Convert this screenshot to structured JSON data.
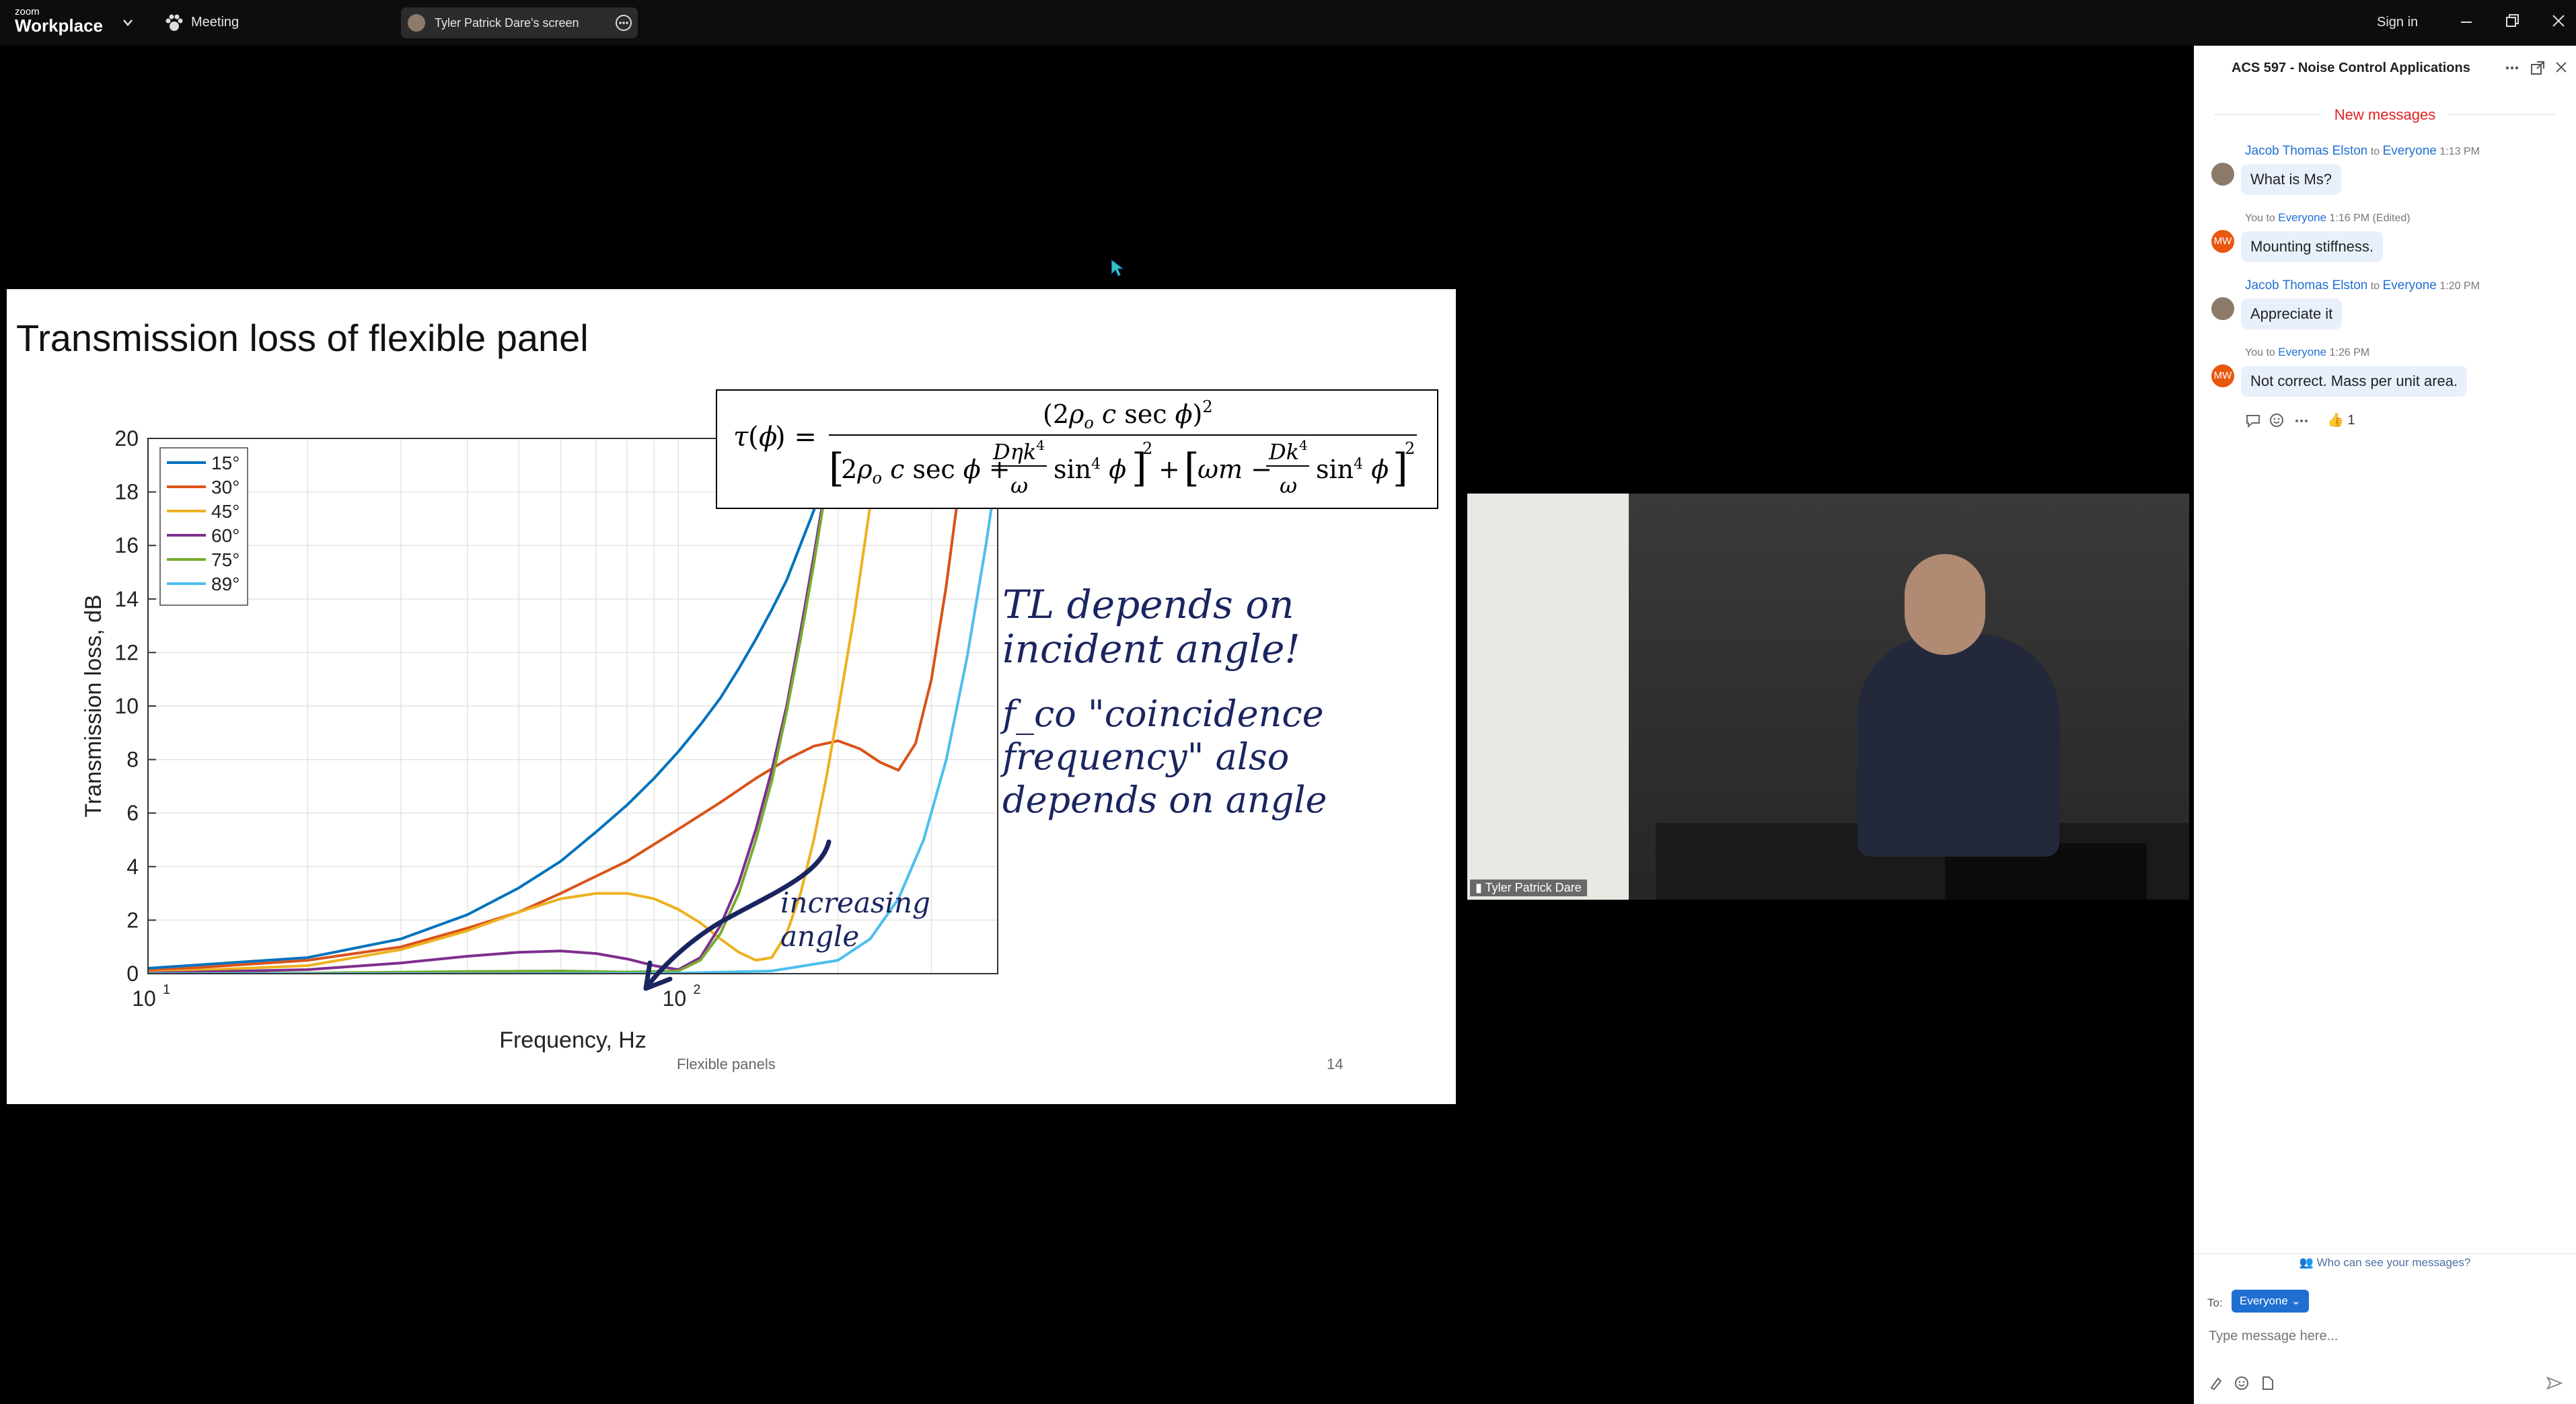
{
  "topbar": {
    "brand_small": "zoom",
    "brand_big": "Workplace",
    "meeting_label": "Meeting",
    "share_label": "Tyler Patrick Dare's screen",
    "sign_in": "Sign in"
  },
  "slide": {
    "title": "Transmission loss of flexible panel",
    "footer_title": "Flexible panels",
    "page_number": "14",
    "annotation_1": "TL depends on incident angle!",
    "annotation_2": "f_co \"coincidence frequency\" also depends on angle",
    "annotation_3": "increasing angle"
  },
  "chart_data": {
    "type": "line",
    "xlabel": "Frequency, Hz",
    "ylabel": "Transmission loss, dB",
    "xscale": "log",
    "xlim": [
      10,
      400
    ],
    "ylim": [
      0,
      20
    ],
    "yticks": [
      0,
      2,
      4,
      6,
      8,
      10,
      12,
      14,
      16,
      18,
      20
    ],
    "ytick_labels": [
      "0",
      "2",
      "4",
      "6",
      "8",
      "10",
      "12",
      "14",
      "16",
      "18",
      "20"
    ],
    "xtick_labels": [
      "10",
      "10"
    ],
    "xtick_exponents": [
      "1",
      "2"
    ],
    "grid": true,
    "legend_position": "top-left",
    "series": [
      {
        "name": "15°",
        "color": "#0072BD",
        "x": [
          10,
          20,
          30,
          40,
          50,
          60,
          70,
          80,
          90,
          100,
          110,
          120,
          130,
          140,
          150,
          160,
          180,
          200
        ],
        "y": [
          0.2,
          0.6,
          1.3,
          2.2,
          3.2,
          4.2,
          5.3,
          6.3,
          7.3,
          8.3,
          9.3,
          10.3,
          11.4,
          12.5,
          13.6,
          14.7,
          17.3,
          20.5
        ]
      },
      {
        "name": "30°",
        "color": "#D95319",
        "x": [
          10,
          20,
          30,
          40,
          50,
          60,
          80,
          100,
          120,
          140,
          160,
          180,
          200,
          220,
          240,
          260,
          280,
          300,
          320,
          340,
          360
        ],
        "y": [
          0.1,
          0.5,
          1.0,
          1.7,
          2.3,
          3.0,
          4.2,
          5.4,
          6.4,
          7.3,
          8.0,
          8.5,
          8.7,
          8.4,
          7.9,
          7.6,
          8.6,
          11.0,
          14.5,
          18.5,
          22.0
        ]
      },
      {
        "name": "45°",
        "color": "#EDB120",
        "x": [
          10,
          20,
          30,
          40,
          50,
          60,
          70,
          80,
          90,
          100,
          110,
          120,
          130,
          140,
          150,
          160,
          170,
          180,
          190,
          200,
          215,
          230,
          245
        ],
        "y": [
          0.05,
          0.3,
          0.9,
          1.6,
          2.3,
          2.8,
          3.0,
          3.0,
          2.8,
          2.4,
          1.9,
          1.3,
          0.8,
          0.5,
          0.6,
          1.5,
          3.0,
          5.0,
          7.3,
          9.8,
          13.5,
          17.5,
          21.0
        ]
      },
      {
        "name": "60°",
        "color": "#7E2F8E",
        "x": [
          10,
          20,
          30,
          40,
          50,
          60,
          70,
          80,
          90,
          100,
          110,
          120,
          130,
          140,
          150,
          160,
          170,
          180,
          190,
          200
        ],
        "y": [
          0.02,
          0.15,
          0.4,
          0.65,
          0.8,
          0.85,
          0.75,
          0.55,
          0.3,
          0.15,
          0.6,
          1.8,
          3.4,
          5.4,
          7.6,
          10.0,
          12.8,
          15.6,
          18.4,
          21.0
        ]
      },
      {
        "name": "75°",
        "color": "#77AC30",
        "x": [
          10,
          20,
          40,
          60,
          80,
          100,
          110,
          120,
          130,
          140,
          150,
          160,
          170,
          180,
          190,
          200
        ],
        "y": [
          0.0,
          0.02,
          0.08,
          0.1,
          0.06,
          0.1,
          0.5,
          1.5,
          3.0,
          5.0,
          7.2,
          9.8,
          12.5,
          15.3,
          18.2,
          21.0
        ]
      },
      {
        "name": "89°",
        "color": "#4DBEEE",
        "x": [
          10,
          50,
          100,
          150,
          200,
          230,
          260,
          290,
          320,
          350,
          380,
          400
        ],
        "y": [
          0.0,
          0.0,
          0.02,
          0.1,
          0.5,
          1.3,
          2.8,
          5.0,
          8.0,
          11.8,
          16.0,
          19.0
        ]
      }
    ]
  },
  "video": {
    "participant_name": "Tyler Patrick Dare"
  },
  "chat": {
    "title": "ACS 597 - Noise Control Applications",
    "new_messages": "New messages",
    "messages": [
      {
        "sender": "Jacob Thomas Elston",
        "to_word": "to",
        "recipient": "Everyone",
        "time": "1:13 PM",
        "text": "What is Ms?"
      },
      {
        "sender": "You",
        "to_word": "to",
        "recipient": "Everyone",
        "time": "1:16 PM (Edited)",
        "text": "Mounting stiffness."
      },
      {
        "sender": "Jacob Thomas Elston",
        "to_word": "to",
        "recipient": "Everyone",
        "time": "1:20 PM",
        "text": "Appreciate it"
      },
      {
        "sender": "You",
        "to_word": "to",
        "recipient": "Everyone",
        "time": "1:26 PM",
        "text": "Not correct.  Mass per unit area."
      }
    ],
    "avatar_initials": "MW",
    "reaction": "👍 1",
    "who_can_see": "Who can see your messages?",
    "to_label": "To:",
    "to_value": "Everyone",
    "input_placeholder": "Type message here..."
  },
  "colors": {
    "accent": "#1f6fd1",
    "new_messages_red": "#e02020",
    "bubble": "#e8f1fb"
  }
}
